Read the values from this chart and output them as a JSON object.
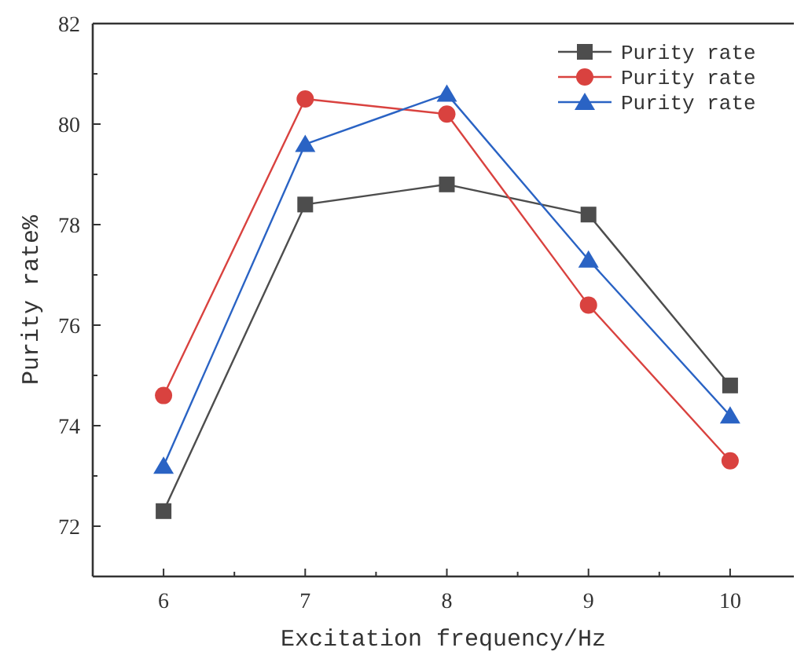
{
  "chart_data": {
    "type": "line",
    "xlabel": "Excitation frequency/Hz",
    "ylabel": "Purity rate%",
    "x": [
      6,
      7,
      8,
      9,
      10
    ],
    "series": [
      {
        "name": "Purity rate",
        "color": "#4d4d4d",
        "marker": "square",
        "values": [
          72.3,
          78.4,
          78.8,
          78.2,
          74.8
        ]
      },
      {
        "name": "Purity rate",
        "color": "#d9423f",
        "marker": "circle",
        "values": [
          74.6,
          80.5,
          80.2,
          76.4,
          73.3
        ]
      },
      {
        "name": "Purity rate",
        "color": "#2a63c4",
        "marker": "triangle",
        "values": [
          73.2,
          79.6,
          80.6,
          77.3,
          74.2
        ]
      }
    ],
    "xlim": [
      5.5,
      10.45
    ],
    "xticks": [
      6,
      {
        "value": 6.5,
        "label": null
      },
      7,
      {
        "value": 7.5,
        "label": null
      },
      8,
      {
        "value": 8.5,
        "label": null
      },
      9,
      {
        "value": 9.5,
        "label": null
      },
      10
    ],
    "ylim": [
      71,
      82
    ],
    "yticks": [
      {
        "value": 71,
        "label": null
      },
      72,
      {
        "value": 73,
        "label": null
      },
      74,
      {
        "value": 75,
        "label": null
      },
      76,
      {
        "value": 77,
        "label": null
      },
      78,
      {
        "value": 79,
        "label": null
      },
      80,
      {
        "value": 81,
        "label": null
      },
      82
    ],
    "grid": false,
    "legend": "top right"
  }
}
